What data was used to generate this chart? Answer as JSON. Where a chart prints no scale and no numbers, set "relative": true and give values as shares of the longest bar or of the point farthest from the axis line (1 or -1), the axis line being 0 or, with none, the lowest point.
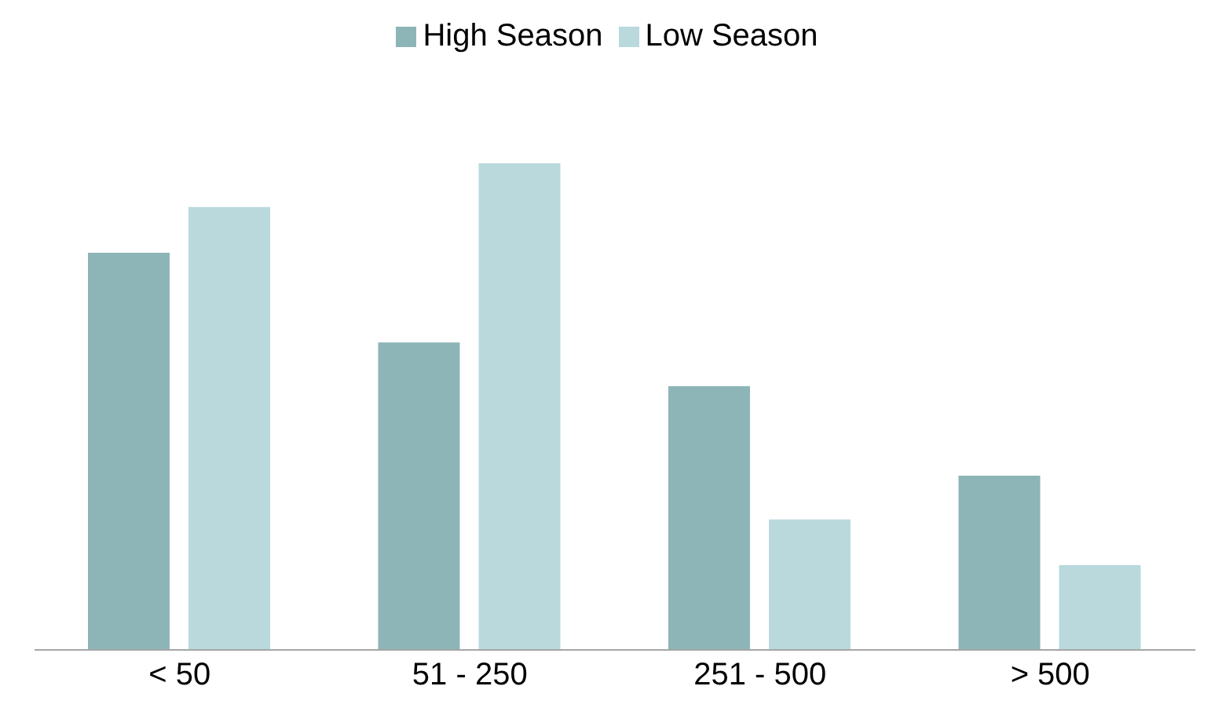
{
  "chart_data": {
    "type": "bar",
    "relative": true,
    "categories": [
      "< 50",
      "51 - 250",
      "251 - 500",
      "> 500"
    ],
    "series": [
      {
        "name": "High Season",
        "color": "#8db5b7",
        "values": [
          0.816,
          0.632,
          0.542,
          0.358
        ]
      },
      {
        "name": "Low Season",
        "color": "#b9d9dd",
        "values": [
          0.91,
          1,
          0.268,
          0.174
        ]
      }
    ],
    "legend": "top",
    "grid": false
  }
}
